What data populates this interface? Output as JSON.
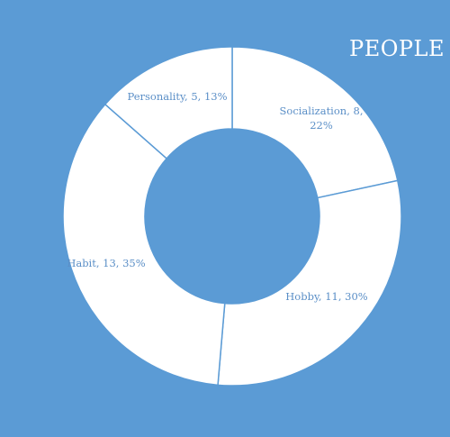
{
  "chart_data": {
    "type": "pie",
    "variant": "donut",
    "title": "PEOPLE",
    "slices": [
      {
        "category": "Socialization",
        "value": 8,
        "percent": "22%",
        "label_lines": [
          "Socialization, 8,",
          "22%"
        ]
      },
      {
        "category": "Hobby",
        "value": 11,
        "percent": "30%",
        "label_lines": [
          "Hobby, 11, 30%"
        ]
      },
      {
        "category": "Habit",
        "value": 13,
        "percent": "35%",
        "label_lines": [
          "Habit, 13, 35%"
        ]
      },
      {
        "category": "Personality",
        "value": 5,
        "percent": "13%",
        "label_lines": [
          "Personality, 5, 13%"
        ]
      }
    ],
    "colors": {
      "background": "#5b9bd5",
      "slice_fill": "#ffffff",
      "slice_border": "#5b9bd5",
      "label": "#5b8fc7",
      "title": "#ffffff"
    }
  }
}
